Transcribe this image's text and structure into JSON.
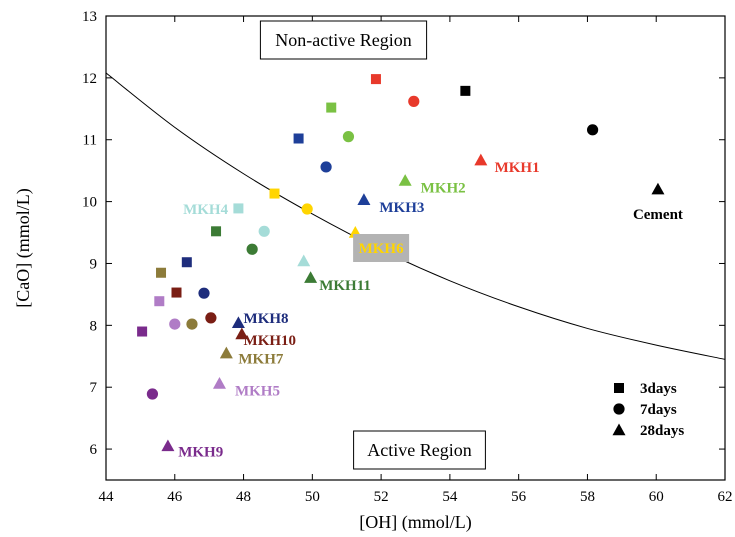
{
  "chart_data": {
    "type": "scatter",
    "title": "",
    "xlabel": "[OH] (mmol/L)",
    "ylabel": "[CaO] (mmol/L)",
    "xlim": [
      44,
      62
    ],
    "ylim": [
      5.5,
      13
    ],
    "xticks": [
      44,
      46,
      48,
      50,
      52,
      54,
      56,
      58,
      60,
      62
    ],
    "yticks": [
      6,
      7,
      8,
      9,
      10,
      11,
      12,
      13
    ],
    "grid": false,
    "legend": {
      "placement": "bottom-right",
      "entries": [
        {
          "marker": "square",
          "label": "3days"
        },
        {
          "marker": "circle",
          "label": "7days"
        },
        {
          "marker": "triangle",
          "label": "28days"
        }
      ]
    },
    "region_labels": [
      {
        "key": "non_active",
        "text": "Non-active Region"
      },
      {
        "key": "active",
        "text": "Active Region"
      }
    ],
    "boundary_curve": [
      {
        "x": 44,
        "y": 12.08
      },
      {
        "x": 46,
        "y": 11.2
      },
      {
        "x": 48,
        "y": 10.45
      },
      {
        "x": 50,
        "y": 9.8
      },
      {
        "x": 52,
        "y": 9.22
      },
      {
        "x": 54,
        "y": 8.72
      },
      {
        "x": 56,
        "y": 8.3
      },
      {
        "x": 58,
        "y": 7.95
      },
      {
        "x": 60,
        "y": 7.68
      },
      {
        "x": 62,
        "y": 7.45
      }
    ],
    "series": [
      {
        "name": "MKH1",
        "color": "#e8392b",
        "label_color": "#e8392b",
        "points": [
          {
            "age": "3days",
            "x": 51.85,
            "y": 11.98
          },
          {
            "age": "7days",
            "x": 52.95,
            "y": 11.62
          },
          {
            "age": "28days",
            "x": 54.9,
            "y": 10.67
          }
        ]
      },
      {
        "name": "MKH2",
        "color": "#7ac143",
        "label_color": "#7ac143",
        "points": [
          {
            "age": "3days",
            "x": 50.55,
            "y": 11.52
          },
          {
            "age": "7days",
            "x": 51.05,
            "y": 11.05
          },
          {
            "age": "28days",
            "x": 52.7,
            "y": 10.34
          }
        ]
      },
      {
        "name": "MKH3",
        "color": "#1e3f99",
        "label_color": "#1e3f99",
        "points": [
          {
            "age": "3days",
            "x": 49.6,
            "y": 11.02
          },
          {
            "age": "7days",
            "x": 50.4,
            "y": 10.56
          },
          {
            "age": "28days",
            "x": 51.5,
            "y": 10.03
          }
        ]
      },
      {
        "name": "MKH4",
        "color": "#a5dcd8",
        "label_color": "#a5dcd8",
        "points": [
          {
            "age": "3days",
            "x": 47.85,
            "y": 9.89
          },
          {
            "age": "7days",
            "x": 48.6,
            "y": 9.52
          },
          {
            "age": "28days",
            "x": 49.75,
            "y": 9.04
          }
        ]
      },
      {
        "name": "MKH5",
        "color": "#b07cc6",
        "label_color": "#b07cc6",
        "points": [
          {
            "age": "3days",
            "x": 45.55,
            "y": 8.39
          },
          {
            "age": "7days",
            "x": 46.0,
            "y": 8.02
          },
          {
            "age": "28days",
            "x": 47.3,
            "y": 7.06
          }
        ]
      },
      {
        "name": "MKH6",
        "color": "#ffd500",
        "label_color": "#ffd500",
        "points": [
          {
            "age": "3days",
            "x": 48.9,
            "y": 10.13
          },
          {
            "age": "7days",
            "x": 49.85,
            "y": 9.88
          },
          {
            "age": "28days",
            "x": 51.25,
            "y": 9.5
          }
        ]
      },
      {
        "name": "MKH7",
        "color": "#8c7b3a",
        "label_color": "#8c7b3a",
        "points": [
          {
            "age": "3days",
            "x": 45.6,
            "y": 8.85
          },
          {
            "age": "7days",
            "x": 46.5,
            "y": 8.02
          },
          {
            "age": "28days",
            "x": 47.5,
            "y": 7.55
          }
        ]
      },
      {
        "name": "MKH8",
        "color": "#1e2d7c",
        "label_color": "#1e2d7c",
        "points": [
          {
            "age": "3days",
            "x": 46.35,
            "y": 9.02
          },
          {
            "age": "7days",
            "x": 46.85,
            "y": 8.52
          },
          {
            "age": "28days",
            "x": 47.85,
            "y": 8.04
          }
        ]
      },
      {
        "name": "MKH9",
        "color": "#7a2b8c",
        "label_color": "#7a2b8c",
        "points": [
          {
            "age": "3days",
            "x": 45.05,
            "y": 7.9
          },
          {
            "age": "7days",
            "x": 45.35,
            "y": 6.89
          },
          {
            "age": "28days",
            "x": 45.8,
            "y": 6.05
          }
        ]
      },
      {
        "name": "MKH10",
        "color": "#7a1e14",
        "label_color": "#7a1e14",
        "points": [
          {
            "age": "3days",
            "x": 46.05,
            "y": 8.53
          },
          {
            "age": "7days",
            "x": 47.05,
            "y": 8.12
          },
          {
            "age": "28days",
            "x": 47.95,
            "y": 7.86
          }
        ]
      },
      {
        "name": "MKH11",
        "color": "#3c7b35",
        "label_color": "#3c7b35",
        "points": [
          {
            "age": "3days",
            "x": 47.2,
            "y": 9.52
          },
          {
            "age": "7days",
            "x": 48.25,
            "y": 9.23
          },
          {
            "age": "28days",
            "x": 49.95,
            "y": 8.77
          }
        ]
      },
      {
        "name": "Cement",
        "color": "#000000",
        "label_color": "#000000",
        "points": [
          {
            "age": "3days",
            "x": 54.45,
            "y": 11.79
          },
          {
            "age": "7days",
            "x": 58.15,
            "y": 11.16
          },
          {
            "age": "28days",
            "x": 60.05,
            "y": 10.2
          }
        ]
      }
    ],
    "point_labels": [
      {
        "series": "MKH1",
        "text": "MKH1",
        "x": 55.3,
        "y": 10.56,
        "anchor": "start"
      },
      {
        "series": "MKH2",
        "text": "MKH2",
        "x": 53.15,
        "y": 10.23,
        "anchor": "start"
      },
      {
        "series": "MKH3",
        "text": "MKH3",
        "x": 51.95,
        "y": 9.91,
        "anchor": "start"
      },
      {
        "series": "MKH4",
        "text": "MKH4",
        "x": 47.55,
        "y": 9.88,
        "anchor": "end"
      },
      {
        "series": "MKH5",
        "text": "MKH5",
        "x": 47.75,
        "y": 6.95,
        "anchor": "start"
      },
      {
        "series": "MKH6",
        "text": "MKH6",
        "x": 52.0,
        "y": 9.25,
        "anchor": "middle",
        "boxed": true
      },
      {
        "series": "MKH7",
        "text": "MKH7",
        "x": 47.85,
        "y": 7.46,
        "anchor": "start"
      },
      {
        "series": "MKH8",
        "text": "MKH8",
        "x": 48.0,
        "y": 8.12,
        "anchor": "start"
      },
      {
        "series": "MKH9",
        "text": "MKH9",
        "x": 46.1,
        "y": 5.96,
        "anchor": "start"
      },
      {
        "series": "MKH10",
        "text": "MKH10",
        "x": 48.0,
        "y": 7.76,
        "anchor": "start"
      },
      {
        "series": "MKH11",
        "text": "MKH11",
        "x": 50.2,
        "y": 8.65,
        "anchor": "start"
      },
      {
        "series": "Cement",
        "text": "Cement",
        "x": 60.05,
        "y": 9.8,
        "anchor": "middle"
      }
    ]
  }
}
